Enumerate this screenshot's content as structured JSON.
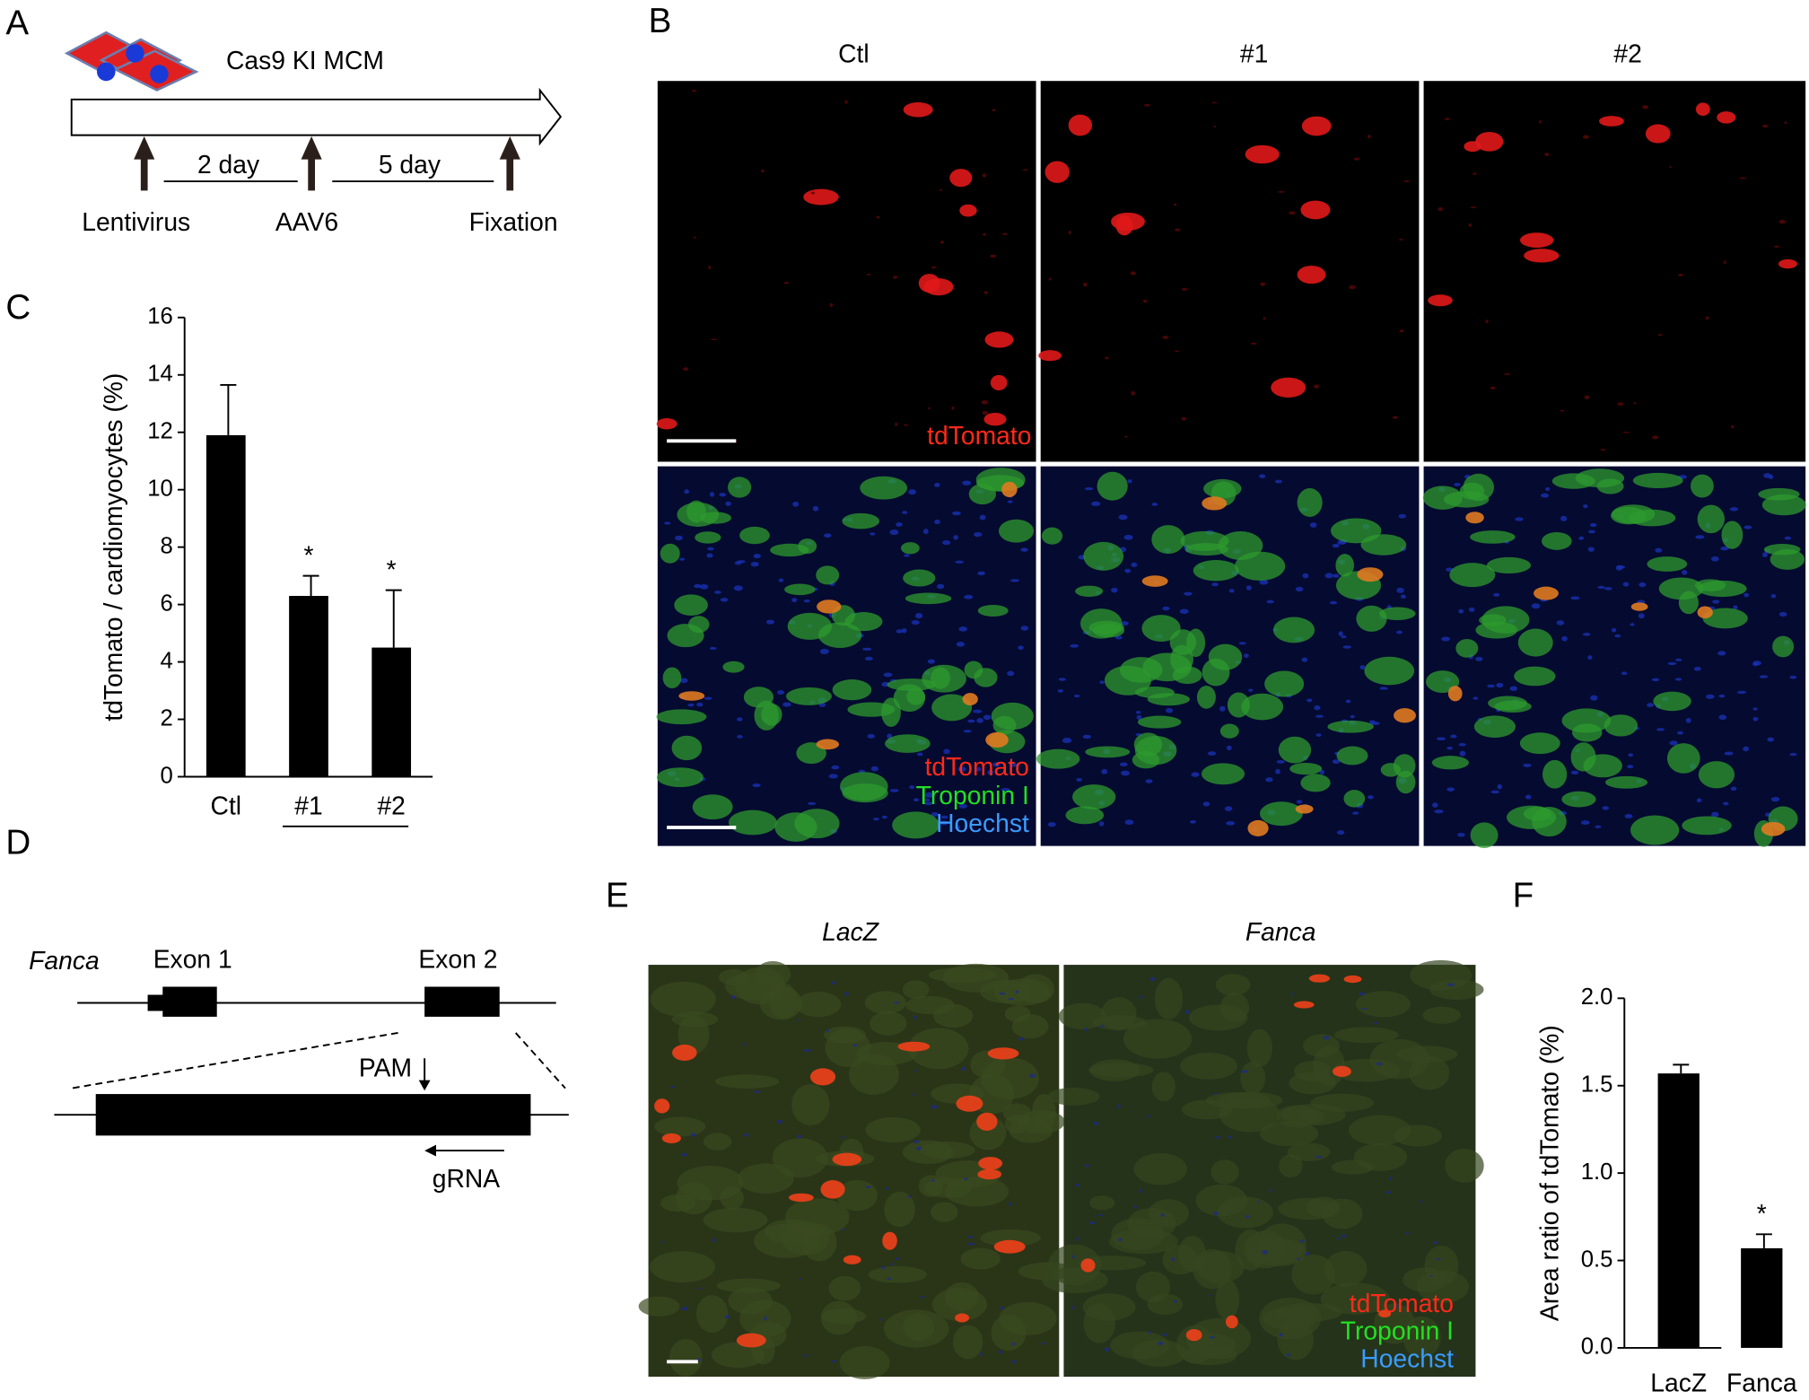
{
  "panels": {
    "A": {
      "letter": "A",
      "cells_label": "Cas9 KI MCM",
      "intervals": [
        "2 day",
        "5 day"
      ],
      "steps": [
        "Lentivirus",
        "AAV6",
        "Fixation"
      ]
    },
    "B": {
      "letter": "B",
      "columns": [
        "Ctl",
        "#1",
        "#2"
      ],
      "top_label": "tdTomato",
      "bottom_labels": [
        "tdTomato",
        "Troponin I",
        "Hoechst"
      ]
    },
    "C": {
      "letter": "C"
    },
    "D": {
      "letter": "D",
      "gene": "Fanca",
      "exons": [
        "Exon 1",
        "Exon 2"
      ],
      "pam": "PAM",
      "grna": "gRNA"
    },
    "E": {
      "letter": "E",
      "columns": [
        "LacZ",
        "Fanca"
      ],
      "labels": [
        "tdTomato",
        "Troponin I",
        "Hoechst"
      ]
    },
    "F": {
      "letter": "F"
    }
  },
  "chart_data": [
    {
      "type": "bar",
      "ylabel": "tdTomato / cardiomyocytes (%)",
      "categories": [
        "Ctl",
        "#1",
        "#2"
      ],
      "values": [
        11.9,
        6.3,
        4.5
      ],
      "errors": [
        1.75,
        0.7,
        2.0
      ],
      "significance": [
        null,
        "*",
        "*"
      ],
      "color": "#000000",
      "ylim": [
        0,
        16
      ],
      "yticks": [
        0,
        2,
        4,
        6,
        8,
        10,
        12,
        14,
        16
      ]
    },
    {
      "type": "bar",
      "ylabel": "Area ratio of tdTomato (%)",
      "categories": [
        "LacZ",
        "Fanca"
      ],
      "values": [
        1.57,
        0.57
      ],
      "errors": [
        0.05,
        0.08
      ],
      "significance": [
        null,
        "*"
      ],
      "color": "#000000",
      "ylim": [
        0,
        2
      ],
      "yticks": [
        {
          "value": 0,
          "label": "0.0"
        },
        0.5,
        {
          "value": 1,
          "label": "1.0"
        },
        1.5,
        {
          "value": 2,
          "label": "2.0"
        }
      ]
    }
  ]
}
